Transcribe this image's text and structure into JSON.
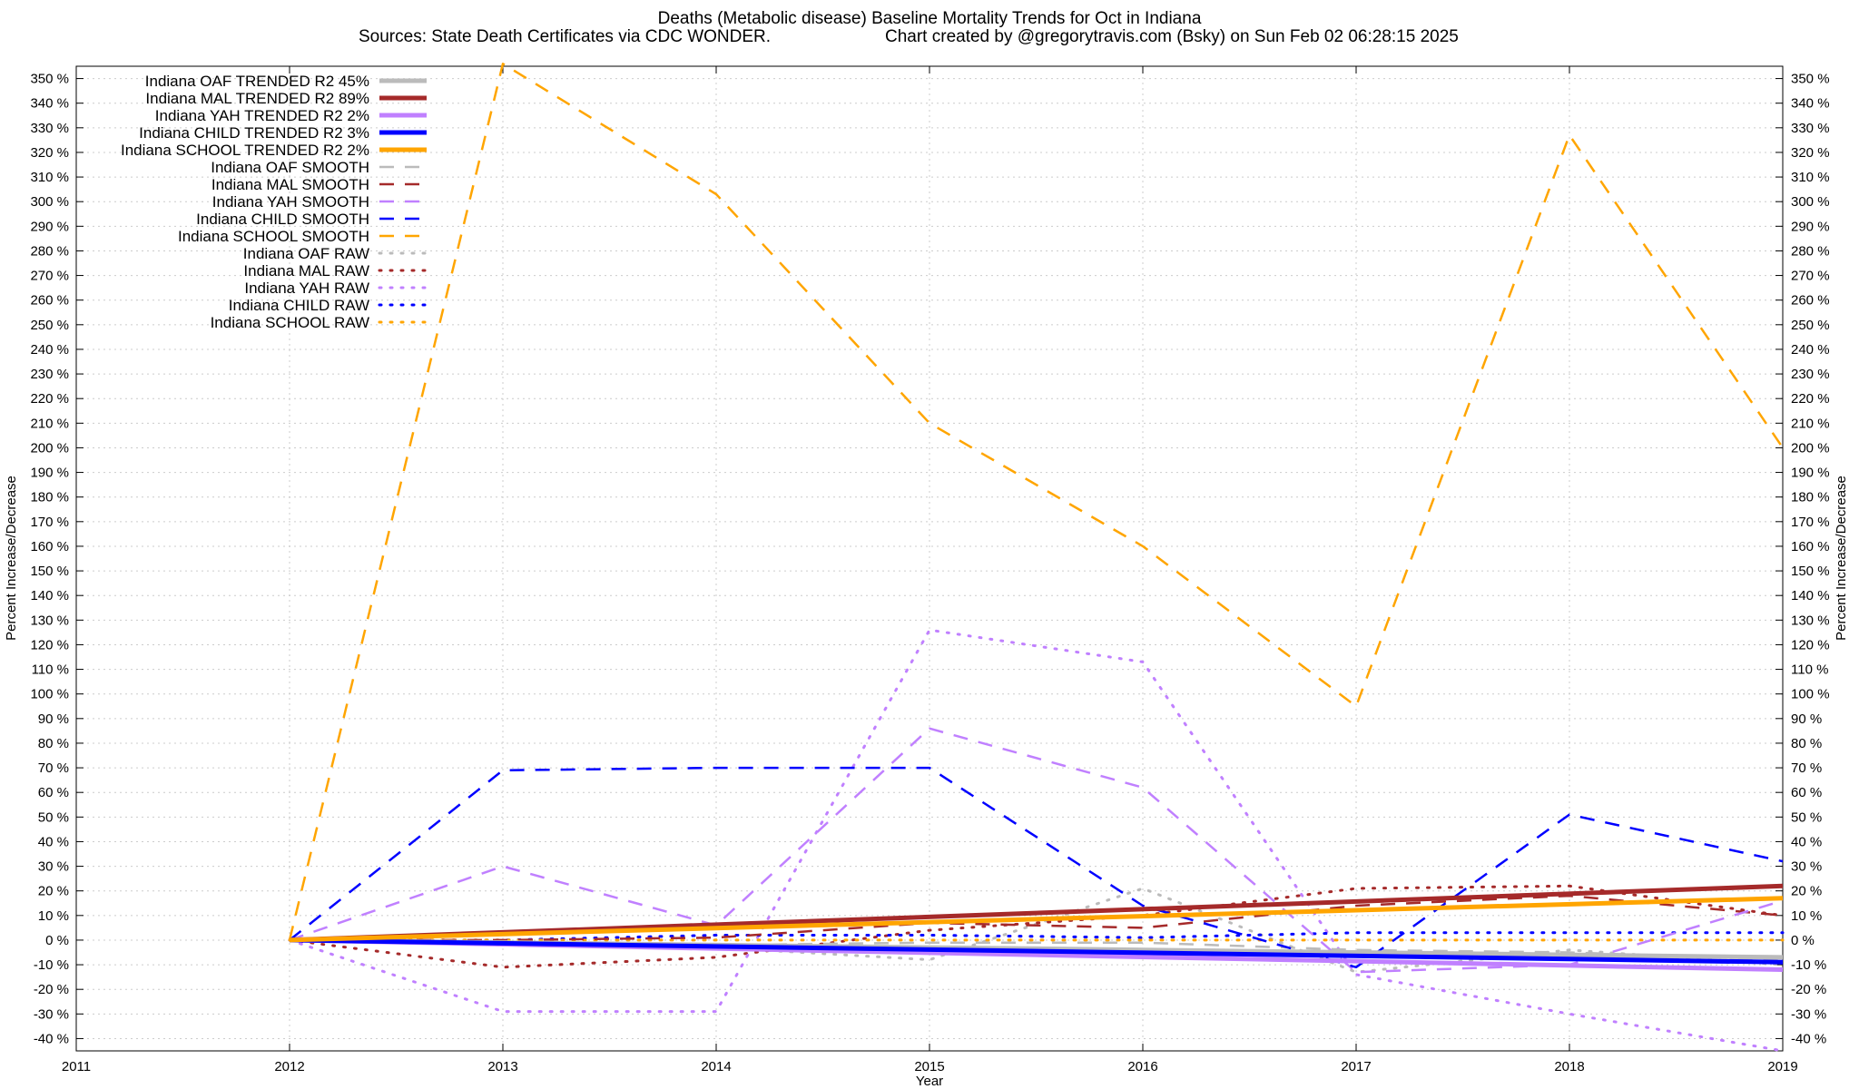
{
  "chart_data": {
    "type": "line",
    "title": "Deaths (Metabolic disease)  Baseline Mortality Trends for Oct in Indiana",
    "subtitle_left": "Sources: State Death Certificates via CDC WONDER.",
    "subtitle_right": "Chart created by @gregorytravis.com (Bsky) on Sun Feb 02 06:28:15 2025",
    "xlabel": "Year",
    "ylabel": "Percent Increase/Decrease",
    "ylabel_right": "Percent Increase/Decrease",
    "xlim": [
      2011,
      2019
    ],
    "ylim": [
      -45,
      355
    ],
    "x_ticks": [
      "2011",
      "2012",
      "2013",
      "2014",
      "2015",
      "2016",
      "2017",
      "2018",
      "2019"
    ],
    "y_ticks_left": [
      "-40 %",
      "-30 %",
      "-20 %",
      "-10 %",
      "0 %",
      "10 %",
      "20 %",
      "30 %",
      "40 %",
      "50 %",
      "60 %",
      "70 %",
      "80 %",
      "90 %",
      "100 %",
      "110 %",
      "120 %",
      "130 %",
      "140 %",
      "150 %",
      "160 %",
      "170 %",
      "180 %",
      "190 %",
      "200 %",
      "210 %",
      "220 %",
      "230 %",
      "240 %",
      "250 %",
      "260 %",
      "270 %",
      "280 %",
      "290 %",
      "300 %",
      "310 %",
      "320 %",
      "330 %",
      "340 %",
      "350 %"
    ],
    "y_ticks_right": [
      "-40 %",
      "-30 %",
      "-20 %",
      "-10 %",
      "0 %",
      "10 %",
      "20 %",
      "30 %",
      "40 %",
      "50 %",
      "60 %",
      "70 %",
      "80 %",
      "90 %",
      "100 %",
      "110 %",
      "120 %",
      "130 %",
      "140 %",
      "150 %",
      "160 %",
      "170 %",
      "180 %",
      "190 %",
      "200 %",
      "210 %",
      "220 %",
      "230 %",
      "240 %",
      "250 %",
      "260 %",
      "270 %",
      "280 %",
      "290 %",
      "300 %",
      "310 %",
      "320 %",
      "330 %",
      "340 %",
      "350 %"
    ],
    "grid": true,
    "legend_position": "top-left",
    "series": [
      {
        "name": "Indiana OAF TRENDED R2  45%",
        "style": "trend",
        "color": "#bbbbbb",
        "x": [
          2012,
          2019
        ],
        "y": [
          0,
          -7
        ]
      },
      {
        "name": "Indiana MAL TRENDED R2  89%",
        "style": "trend",
        "color": "#a52a2a",
        "x": [
          2012,
          2019
        ],
        "y": [
          0,
          22
        ]
      },
      {
        "name": "Indiana YAH TRENDED R2   2%",
        "style": "trend",
        "color": "#c080ff",
        "x": [
          2012,
          2019
        ],
        "y": [
          0,
          -12
        ]
      },
      {
        "name": "Indiana CHILD TRENDED R2   3%",
        "style": "trend",
        "color": "#0000ff",
        "x": [
          2012,
          2019
        ],
        "y": [
          0,
          -9
        ]
      },
      {
        "name": "Indiana SCHOOL TRENDED R2   2%",
        "style": "trend",
        "color": "#ffa500",
        "x": [
          2012,
          2019
        ],
        "y": [
          0,
          17
        ]
      },
      {
        "name": "Indiana OAF SMOOTH",
        "style": "smooth",
        "color": "#bbbbbb",
        "x": [
          2012,
          2013,
          2014,
          2015,
          2016,
          2017,
          2018,
          2019
        ],
        "y": [
          0,
          -2,
          -2,
          -1,
          -1,
          -4,
          -5,
          -8
        ]
      },
      {
        "name": "Indiana MAL SMOOTH",
        "style": "smooth",
        "color": "#a52a2a",
        "x": [
          2012,
          2013,
          2014,
          2015,
          2016,
          2017,
          2018,
          2019
        ],
        "y": [
          0,
          0,
          1,
          7,
          5,
          14,
          18,
          10
        ]
      },
      {
        "name": "Indiana YAH SMOOTH",
        "style": "smooth",
        "color": "#c080ff",
        "x": [
          2012,
          2013,
          2014,
          2015,
          2016,
          2017,
          2018,
          2019
        ],
        "y": [
          0,
          30,
          6,
          86,
          62,
          -13,
          -10,
          16
        ]
      },
      {
        "name": "Indiana CHILD SMOOTH",
        "style": "smooth",
        "color": "#0000ff",
        "x": [
          2012,
          2013,
          2014,
          2015,
          2016,
          2017,
          2018,
          2019
        ],
        "y": [
          0,
          69,
          70,
          70,
          14,
          -11,
          51,
          32
        ]
      },
      {
        "name": "Indiana SCHOOL SMOOTH",
        "style": "smooth",
        "color": "#ffa500",
        "x": [
          2012,
          2013,
          2014,
          2015,
          2016,
          2017,
          2018,
          2019
        ],
        "y": [
          0,
          356,
          303,
          210,
          160,
          95,
          327,
          200
        ]
      },
      {
        "name": "Indiana OAF RAW",
        "style": "raw",
        "color": "#bbbbbb",
        "x": [
          2012,
          2013,
          2014,
          2015,
          2016,
          2017,
          2018,
          2019
        ],
        "y": [
          0,
          -2,
          -3,
          -8,
          21,
          -13,
          -4,
          -10
        ]
      },
      {
        "name": "Indiana MAL RAW",
        "style": "raw",
        "color": "#a52a2a",
        "x": [
          2012,
          2013,
          2014,
          2015,
          2016,
          2017,
          2018,
          2019
        ],
        "y": [
          0,
          -11,
          -7,
          4,
          10,
          21,
          22,
          10
        ]
      },
      {
        "name": "Indiana YAH RAW",
        "style": "raw",
        "color": "#c080ff",
        "x": [
          2012,
          2013,
          2014,
          2015,
          2016,
          2017,
          2018,
          2019
        ],
        "y": [
          0,
          -29,
          -29,
          126,
          113,
          -14,
          -30,
          -45
        ]
      },
      {
        "name": "Indiana CHILD RAW",
        "style": "raw",
        "color": "#0000ff",
        "x": [
          2012,
          2013,
          2014,
          2015,
          2016,
          2017,
          2018,
          2019
        ],
        "y": [
          0,
          0,
          2,
          2,
          1,
          3,
          3,
          3
        ]
      },
      {
        "name": "Indiana SCHOOL RAW",
        "style": "raw",
        "color": "#ffa500",
        "x": [
          2012,
          2013,
          2014,
          2015,
          2016,
          2017,
          2018,
          2019
        ],
        "y": [
          0,
          0,
          0,
          0,
          0,
          0,
          0,
          0
        ]
      }
    ]
  }
}
